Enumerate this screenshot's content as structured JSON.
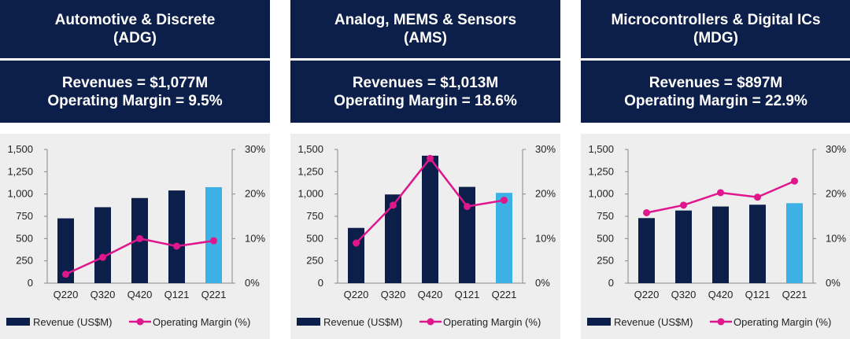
{
  "colors": {
    "header_bg": "#0c1f4b",
    "bar": "#0c1f4b",
    "bar_highlight": "#3db0e6",
    "line": "#e0168c",
    "chart_bg": "#eeeeee"
  },
  "panels": [
    {
      "title_line1": "Automotive & Discrete",
      "title_line2": "(ADG)",
      "revenue_text": "Revenues = $1,077M",
      "margin_text": "Operating Margin = 9.5%"
    },
    {
      "title_line1": "Analog, MEMS & Sensors",
      "title_line2": "(AMS)",
      "revenue_text": "Revenues = $1,013M",
      "margin_text": "Operating Margin = 18.6%"
    },
    {
      "title_line1": "Microcontrollers & Digital ICs",
      "title_line2": "(MDG)",
      "revenue_text": "Revenues = $897M",
      "margin_text": "Operating Margin = 22.9%"
    }
  ],
  "chart_data": [
    {
      "type": "bar",
      "categories": [
        "Q220",
        "Q320",
        "Q420",
        "Q121",
        "Q221"
      ],
      "series": [
        {
          "name": "Revenue (US$M)",
          "type": "bar",
          "axis": "left",
          "values": [
            727,
            852,
            955,
            1040,
            1077
          ]
        },
        {
          "name": "Operating Margin (%)",
          "type": "line",
          "axis": "right",
          "values": [
            2.0,
            5.8,
            10.0,
            8.3,
            9.5
          ]
        }
      ],
      "y_left": {
        "min": 0,
        "max": 1500,
        "ticks": [
          "0",
          "250",
          "500",
          "750",
          "1,000",
          "1,250",
          "1,500"
        ]
      },
      "y_right": {
        "min": 0,
        "max": 30,
        "ticks": [
          "0%",
          "10%",
          "20%",
          "30%"
        ]
      },
      "highlight_index": 4,
      "legend_position": "bottom"
    },
    {
      "type": "bar",
      "categories": [
        "Q220",
        "Q320",
        "Q420",
        "Q121",
        "Q221"
      ],
      "series": [
        {
          "name": "Revenue (US$M)",
          "type": "bar",
          "axis": "left",
          "values": [
            620,
            995,
            1430,
            1080,
            1013
          ]
        },
        {
          "name": "Operating Margin (%)",
          "type": "line",
          "axis": "right",
          "values": [
            9.0,
            17.5,
            28.0,
            17.2,
            18.6
          ]
        }
      ],
      "y_left": {
        "min": 0,
        "max": 1500,
        "ticks": [
          "0",
          "250",
          "500",
          "750",
          "1,000",
          "1,250",
          "1,500"
        ]
      },
      "y_right": {
        "min": 0,
        "max": 30,
        "ticks": [
          "0%",
          "10%",
          "20%",
          "30%"
        ]
      },
      "highlight_index": 4,
      "legend_position": "bottom"
    },
    {
      "type": "bar",
      "categories": [
        "Q220",
        "Q320",
        "Q420",
        "Q121",
        "Q221"
      ],
      "series": [
        {
          "name": "Revenue (US$M)",
          "type": "bar",
          "axis": "left",
          "values": [
            730,
            815,
            860,
            880,
            897
          ]
        },
        {
          "name": "Operating Margin (%)",
          "type": "line",
          "axis": "right",
          "values": [
            15.8,
            17.5,
            20.3,
            19.3,
            22.9
          ]
        }
      ],
      "y_left": {
        "min": 0,
        "max": 1500,
        "ticks": [
          "0",
          "250",
          "500",
          "750",
          "1,000",
          "1,250",
          "1,500"
        ]
      },
      "y_right": {
        "min": 0,
        "max": 30,
        "ticks": [
          "0%",
          "10%",
          "20%",
          "30%"
        ]
      },
      "highlight_index": 4,
      "legend_position": "bottom"
    }
  ]
}
